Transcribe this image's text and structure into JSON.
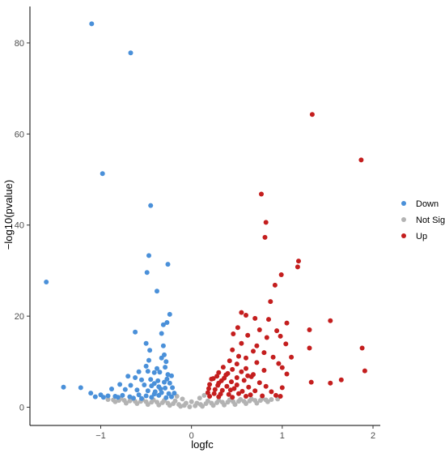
{
  "chart_data": {
    "type": "scatter",
    "xlabel": "logfc",
    "ylabel": "−log10(pvalue)",
    "xlim": [
      -1.78,
      2.08
    ],
    "ylim": [
      -4,
      88
    ],
    "x_ticks": [
      -1,
      0,
      1,
      2
    ],
    "x_tick_labels": [
      "−1",
      "0",
      "1",
      "2"
    ],
    "y_ticks": [
      0,
      20,
      40,
      60,
      80
    ],
    "y_tick_labels": [
      "0",
      "20",
      "40",
      "60",
      "80"
    ],
    "grid": false,
    "legend_placement": "right",
    "series": [
      {
        "name": "Down",
        "color": "#4a90d9",
        "points": [
          [
            -1.1,
            84.2
          ],
          [
            -0.67,
            77.8
          ],
          [
            -0.98,
            51.3
          ],
          [
            -0.45,
            44.3
          ],
          [
            -1.6,
            27.5
          ],
          [
            -0.47,
            33.3
          ],
          [
            -0.26,
            31.4
          ],
          [
            -0.49,
            29.6
          ],
          [
            -0.38,
            25.5
          ],
          [
            -0.24,
            20.4
          ],
          [
            -0.27,
            18.6
          ],
          [
            -0.31,
            18.1
          ],
          [
            -0.62,
            16.5
          ],
          [
            -0.33,
            16.2
          ],
          [
            -0.5,
            14.0
          ],
          [
            -0.31,
            13.5
          ],
          [
            -0.46,
            12.5
          ],
          [
            -0.3,
            11.5
          ],
          [
            -0.33,
            10.8
          ],
          [
            -0.47,
            10.3
          ],
          [
            -0.28,
            10.0
          ],
          [
            -0.5,
            9.0
          ],
          [
            -0.38,
            8.5
          ],
          [
            -0.29,
            8.8
          ],
          [
            -0.58,
            7.8
          ],
          [
            -0.48,
            7.9
          ],
          [
            -0.41,
            7.6
          ],
          [
            -0.35,
            7.7
          ],
          [
            -0.26,
            7.2
          ],
          [
            -0.22,
            6.9
          ],
          [
            -0.7,
            6.8
          ],
          [
            -0.62,
            6.5
          ],
          [
            -0.55,
            6.0
          ],
          [
            -0.45,
            6.1
          ],
          [
            -0.37,
            5.8
          ],
          [
            -0.3,
            5.5
          ],
          [
            -0.24,
            5.3
          ],
          [
            -0.79,
            5.0
          ],
          [
            -0.67,
            4.8
          ],
          [
            -0.52,
            4.9
          ],
          [
            -0.44,
            4.7
          ],
          [
            -0.36,
            4.5
          ],
          [
            -0.29,
            4.2
          ],
          [
            -0.21,
            4.3
          ],
          [
            -1.41,
            4.4
          ],
          [
            -1.22,
            4.3
          ],
          [
            -0.88,
            4.0
          ],
          [
            -0.73,
            3.9
          ],
          [
            -0.6,
            3.8
          ],
          [
            -0.48,
            3.6
          ],
          [
            -0.4,
            3.4
          ],
          [
            -0.33,
            3.2
          ],
          [
            -0.25,
            3.0
          ],
          [
            -0.19,
            3.1
          ],
          [
            -1.11,
            3.1
          ],
          [
            -1.0,
            2.7
          ],
          [
            -0.92,
            2.5
          ],
          [
            -0.84,
            2.4
          ],
          [
            -0.76,
            2.6
          ],
          [
            -0.68,
            2.3
          ],
          [
            -0.58,
            2.7
          ],
          [
            -0.5,
            2.5
          ],
          [
            -0.44,
            2.2
          ],
          [
            -0.36,
            2.6
          ],
          [
            -0.28,
            2.1
          ],
          [
            -0.22,
            2.3
          ],
          [
            -1.06,
            2.3
          ],
          [
            -0.97,
            2.2
          ],
          [
            -0.81,
            2.2
          ],
          [
            -0.64,
            2.0
          ],
          [
            -0.55,
            1.9
          ],
          [
            -0.41,
            2.9
          ],
          [
            -0.34,
            4.0
          ],
          [
            -0.27,
            6.2
          ],
          [
            -0.41,
            5.2
          ]
        ]
      },
      {
        "name": "Not Sig",
        "color": "#b3b3b3",
        "points": [
          [
            -0.92,
            1.7
          ],
          [
            -0.86,
            1.6
          ],
          [
            -0.8,
            1.5
          ],
          [
            -0.74,
            1.5
          ],
          [
            -0.68,
            1.4
          ],
          [
            -0.62,
            1.3
          ],
          [
            -0.56,
            1.3
          ],
          [
            -0.5,
            1.2
          ],
          [
            -0.44,
            1.1
          ],
          [
            -0.38,
            1.1
          ],
          [
            -0.32,
            1.0
          ],
          [
            -0.26,
            0.9
          ],
          [
            -0.2,
            0.8
          ],
          [
            -0.14,
            0.6
          ],
          [
            -0.08,
            0.4
          ],
          [
            -0.02,
            0.1
          ],
          [
            0.04,
            0.3
          ],
          [
            0.1,
            0.6
          ],
          [
            0.16,
            0.8
          ],
          [
            0.22,
            0.9
          ],
          [
            0.28,
            1.0
          ],
          [
            0.34,
            1.1
          ],
          [
            0.4,
            1.1
          ],
          [
            0.46,
            1.2
          ],
          [
            0.52,
            1.3
          ],
          [
            0.58,
            1.3
          ],
          [
            0.64,
            1.4
          ],
          [
            0.7,
            1.5
          ],
          [
            0.76,
            1.5
          ],
          [
            0.82,
            1.6
          ],
          [
            0.88,
            1.7
          ],
          [
            -0.78,
            1.9
          ],
          [
            -0.66,
            1.8
          ],
          [
            -0.54,
            1.7
          ],
          [
            -0.42,
            1.6
          ],
          [
            -0.3,
            1.5
          ],
          [
            -0.18,
            1.4
          ],
          [
            -0.06,
            0.9
          ],
          [
            0.06,
            0.9
          ],
          [
            0.18,
            1.4
          ],
          [
            0.3,
            1.5
          ],
          [
            0.42,
            1.6
          ],
          [
            0.54,
            1.7
          ],
          [
            0.66,
            1.8
          ],
          [
            0.78,
            1.9
          ],
          [
            -0.48,
            0.6
          ],
          [
            -0.36,
            0.5
          ],
          [
            -0.24,
            0.4
          ],
          [
            -0.12,
            0.2
          ],
          [
            0.12,
            0.2
          ],
          [
            0.24,
            0.4
          ],
          [
            0.36,
            0.5
          ],
          [
            0.48,
            0.6
          ],
          [
            -0.6,
            0.8
          ],
          [
            0.6,
            0.8
          ],
          [
            -0.16,
            2.4
          ],
          [
            -0.1,
            1.8
          ],
          [
            0.0,
            1.2
          ],
          [
            0.09,
            2.0
          ],
          [
            0.14,
            2.6
          ],
          [
            -0.72,
            0.9
          ],
          [
            0.72,
            0.9
          ],
          [
            -0.84,
            1.2
          ],
          [
            0.84,
            1.2
          ],
          [
            0.95,
            1.8
          ]
        ]
      },
      {
        "name": "Up",
        "color": "#c41e1e",
        "points": [
          [
            1.33,
            64.3
          ],
          [
            1.87,
            54.3
          ],
          [
            0.77,
            46.8
          ],
          [
            0.82,
            40.6
          ],
          [
            0.81,
            37.3
          ],
          [
            1.18,
            32.1
          ],
          [
            1.17,
            30.8
          ],
          [
            0.99,
            29.1
          ],
          [
            0.92,
            26.8
          ],
          [
            0.87,
            23.2
          ],
          [
            0.55,
            20.8
          ],
          [
            0.6,
            20.2
          ],
          [
            0.7,
            19.5
          ],
          [
            0.85,
            19.3
          ],
          [
            1.05,
            18.5
          ],
          [
            1.53,
            19.0
          ],
          [
            0.51,
            17.5
          ],
          [
            0.75,
            17.0
          ],
          [
            0.94,
            16.8
          ],
          [
            1.3,
            17.0
          ],
          [
            0.46,
            16.1
          ],
          [
            0.62,
            15.8
          ],
          [
            0.83,
            15.3
          ],
          [
            0.98,
            15.6
          ],
          [
            0.55,
            14.0
          ],
          [
            0.72,
            13.5
          ],
          [
            1.04,
            13.9
          ],
          [
            0.45,
            12.6
          ],
          [
            0.68,
            12.3
          ],
          [
            0.8,
            12.0
          ],
          [
            1.3,
            13.0
          ],
          [
            1.88,
            13.0
          ],
          [
            0.52,
            11.2
          ],
          [
            0.6,
            10.8
          ],
          [
            0.9,
            11.0
          ],
          [
            1.1,
            11.0
          ],
          [
            0.42,
            10.2
          ],
          [
            0.5,
            9.5
          ],
          [
            0.72,
            9.8
          ],
          [
            0.96,
            9.6
          ],
          [
            0.35,
            8.8
          ],
          [
            0.45,
            8.3
          ],
          [
            0.6,
            8.5
          ],
          [
            0.8,
            8.1
          ],
          [
            1.0,
            8.7
          ],
          [
            1.91,
            8.0
          ],
          [
            0.3,
            7.6
          ],
          [
            0.4,
            7.4
          ],
          [
            0.55,
            7.8
          ],
          [
            0.68,
            7.2
          ],
          [
            1.05,
            7.3
          ],
          [
            0.28,
            6.8
          ],
          [
            0.36,
            6.4
          ],
          [
            0.5,
            6.5
          ],
          [
            0.62,
            6.9
          ],
          [
            1.65,
            6.0
          ],
          [
            0.22,
            6.2
          ],
          [
            0.33,
            5.8
          ],
          [
            0.44,
            5.6
          ],
          [
            0.58,
            5.9
          ],
          [
            0.75,
            5.4
          ],
          [
            1.32,
            5.5
          ],
          [
            1.53,
            5.3
          ],
          [
            0.2,
            5.0
          ],
          [
            0.29,
            4.8
          ],
          [
            0.39,
            4.6
          ],
          [
            0.5,
            4.9
          ],
          [
            0.63,
            4.4
          ],
          [
            0.82,
            4.6
          ],
          [
            1.0,
            4.3
          ],
          [
            0.19,
            4.1
          ],
          [
            0.26,
            3.9
          ],
          [
            0.34,
            3.7
          ],
          [
            0.43,
            3.8
          ],
          [
            0.56,
            3.5
          ],
          [
            0.7,
            3.6
          ],
          [
            0.88,
            3.4
          ],
          [
            0.18,
            3.2
          ],
          [
            0.25,
            3.0
          ],
          [
            0.32,
            2.9
          ],
          [
            0.41,
            2.8
          ],
          [
            0.52,
            3.0
          ],
          [
            0.65,
            2.7
          ],
          [
            0.78,
            2.5
          ],
          [
            0.93,
            2.6
          ],
          [
            0.2,
            2.4
          ],
          [
            0.3,
            2.3
          ],
          [
            0.45,
            2.2
          ],
          [
            0.6,
            2.4
          ],
          [
            0.98,
            2.4
          ],
          [
            0.24,
            6.3
          ],
          [
            0.38,
            7.1
          ],
          [
            0.47,
            4.1
          ],
          [
            0.66,
            6.7
          ],
          [
            0.3,
            5.3
          ]
        ]
      }
    ]
  }
}
